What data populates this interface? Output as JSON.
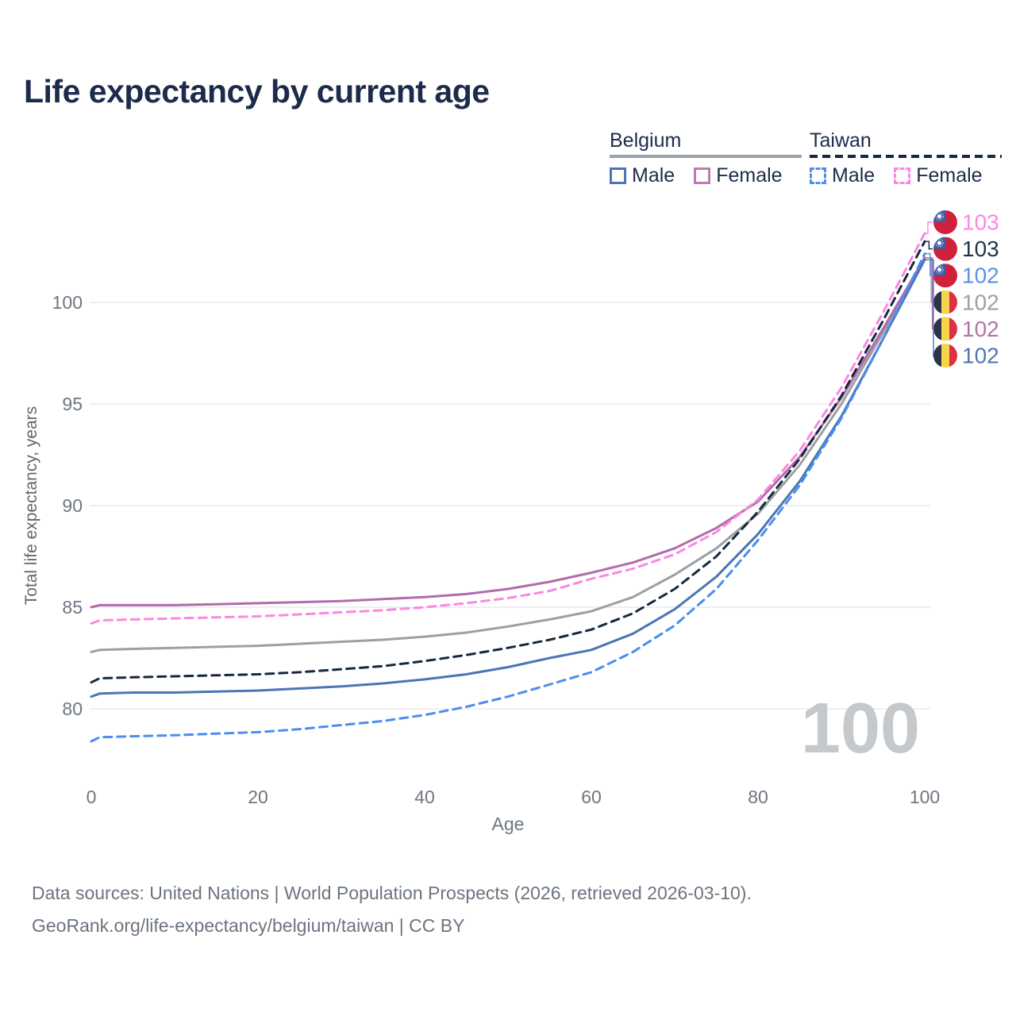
{
  "title": "Life expectancy by current age",
  "legend": {
    "groups": [
      {
        "label": "Belgium",
        "underline": {
          "style": "solid",
          "color": "#9aa1a8"
        },
        "items": [
          {
            "label": "Male",
            "color": "#4a76b4",
            "dash": false
          },
          {
            "label": "Female",
            "color": "#bb7cb6",
            "dash": false
          }
        ]
      },
      {
        "label": "Taiwan",
        "underline": {
          "style": "dashed",
          "color": "#17293f"
        },
        "items": [
          {
            "label": "Male",
            "color": "#4b8df0",
            "dash": true
          },
          {
            "label": "Female",
            "color": "#fc87e2",
            "dash": true
          }
        ]
      }
    ]
  },
  "chart_data": {
    "type": "line",
    "title": "Life expectancy by current age",
    "xlabel": "Age",
    "ylabel": "Total life expectancy, years",
    "xlim": [
      0,
      100
    ],
    "ylim": [
      77,
      104.5
    ],
    "xticks": [
      0,
      20,
      40,
      60,
      80,
      100
    ],
    "yticks": [
      80,
      85,
      90,
      95,
      100
    ],
    "grid": "horizontal-only",
    "legend_position": "top-right",
    "x": [
      0,
      1,
      5,
      10,
      15,
      20,
      25,
      30,
      35,
      40,
      45,
      50,
      55,
      60,
      65,
      70,
      75,
      80,
      85,
      90,
      95,
      100
    ],
    "series": [
      {
        "name": "Belgium Total",
        "country": "Belgium",
        "sex": "Both",
        "color": "#9d9fa2",
        "dash": false,
        "width": 3,
        "values": [
          82.8,
          82.9,
          82.95,
          83.0,
          83.05,
          83.1,
          83.2,
          83.3,
          83.4,
          83.55,
          83.75,
          84.05,
          84.4,
          84.8,
          85.5,
          86.6,
          87.9,
          89.6,
          92.0,
          95.0,
          98.5,
          102.2
        ]
      },
      {
        "name": "Belgium Female",
        "country": "Belgium",
        "sex": "Female",
        "color": "#b26bab",
        "dash": false,
        "width": 3,
        "values": [
          85.0,
          85.1,
          85.1,
          85.1,
          85.15,
          85.2,
          85.25,
          85.3,
          85.4,
          85.5,
          85.65,
          85.9,
          86.25,
          86.7,
          87.2,
          87.9,
          88.9,
          90.2,
          92.4,
          95.3,
          98.7,
          102.2
        ]
      },
      {
        "name": "Belgium Male",
        "country": "Belgium",
        "sex": "Male",
        "color": "#4a76b4",
        "dash": false,
        "width": 3,
        "values": [
          80.6,
          80.75,
          80.8,
          80.8,
          80.85,
          80.9,
          81.0,
          81.1,
          81.25,
          81.45,
          81.7,
          82.05,
          82.5,
          82.9,
          83.7,
          84.9,
          86.5,
          88.6,
          91.2,
          94.4,
          98.2,
          102.1
        ]
      },
      {
        "name": "Taiwan Total",
        "country": "Taiwan",
        "sex": "Both",
        "color": "#17293f",
        "dash": true,
        "width": 3,
        "values": [
          81.3,
          81.5,
          81.55,
          81.6,
          81.65,
          81.7,
          81.8,
          81.95,
          82.1,
          82.35,
          82.65,
          83.0,
          83.4,
          83.9,
          84.7,
          85.9,
          87.5,
          89.7,
          92.3,
          95.4,
          99.1,
          103.0
        ]
      },
      {
        "name": "Taiwan Female",
        "country": "Taiwan",
        "sex": "Female",
        "color": "#fc87e2",
        "dash": true,
        "width": 3,
        "values": [
          84.2,
          84.35,
          84.4,
          84.45,
          84.5,
          84.55,
          84.65,
          84.75,
          84.85,
          85.0,
          85.2,
          85.45,
          85.8,
          86.4,
          86.9,
          87.6,
          88.7,
          90.3,
          92.7,
          95.8,
          99.5,
          103.4
        ]
      },
      {
        "name": "Taiwan Male",
        "country": "Taiwan",
        "sex": "Male",
        "color": "#4b8df0",
        "dash": true,
        "width": 3,
        "values": [
          78.4,
          78.6,
          78.65,
          78.7,
          78.78,
          78.85,
          79.0,
          79.2,
          79.4,
          79.7,
          80.1,
          80.6,
          81.2,
          81.8,
          82.8,
          84.1,
          85.9,
          88.3,
          91.0,
          94.3,
          98.2,
          102.4
        ]
      }
    ]
  },
  "end_labels": [
    {
      "series": "Taiwan Female",
      "flag": "taiwan",
      "value": "103",
      "color": "#fd87e1"
    },
    {
      "series": "Taiwan Total",
      "flag": "taiwan",
      "value": "103",
      "color": "#22344e"
    },
    {
      "series": "Taiwan Male",
      "flag": "taiwan",
      "value": "102",
      "color": "#5b92e5"
    },
    {
      "series": "Belgium Total",
      "flag": "belgium",
      "value": "102",
      "color": "#9ba1a7"
    },
    {
      "series": "Belgium Female",
      "flag": "belgium",
      "value": "102",
      "color": "#b273a8"
    },
    {
      "series": "Belgium Male",
      "flag": "belgium",
      "value": "102",
      "color": "#5077ad"
    }
  ],
  "watermark": "100",
  "footer": {
    "line1": "Data sources: United Nations | World Population Prospects (2026, retrieved 2026-03-10).",
    "line2": "GeoRank.org/life-expectancy/belgium/taiwan | CC BY"
  }
}
